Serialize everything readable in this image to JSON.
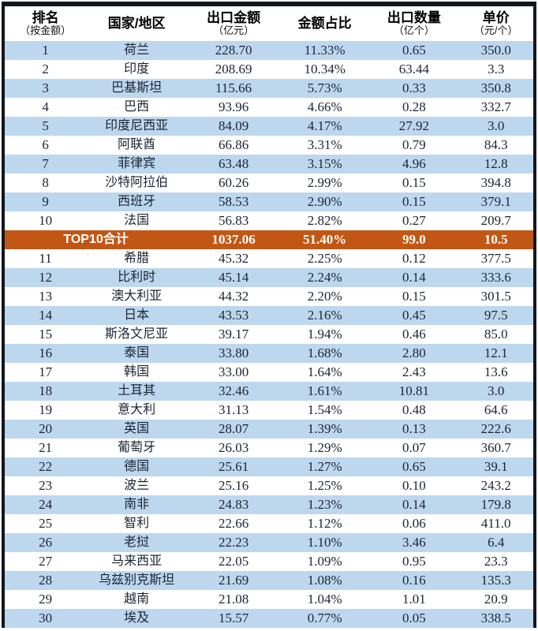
{
  "table": {
    "columns": [
      {
        "title": "排名",
        "sub": "（按金额）"
      },
      {
        "title": "国家/地区",
        "sub": ""
      },
      {
        "title": "出口金额",
        "sub": "（亿元）"
      },
      {
        "title": "金额占比",
        "sub": ""
      },
      {
        "title": "出口数量",
        "sub": "（亿个）"
      },
      {
        "title": "单价",
        "sub": "（元/个）"
      }
    ],
    "rows": [
      {
        "rank": "1",
        "country": "荷兰",
        "amount": "228.70",
        "share": "11.33%",
        "quantity": "0.65",
        "price": "350.0"
      },
      {
        "rank": "2",
        "country": "印度",
        "amount": "208.69",
        "share": "10.34%",
        "quantity": "63.44",
        "price": "3.3"
      },
      {
        "rank": "3",
        "country": "巴基斯坦",
        "amount": "115.66",
        "share": "5.73%",
        "quantity": "0.33",
        "price": "350.8"
      },
      {
        "rank": "4",
        "country": "巴西",
        "amount": "93.96",
        "share": "4.66%",
        "quantity": "0.28",
        "price": "332.7"
      },
      {
        "rank": "5",
        "country": "印度尼西亚",
        "amount": "84.09",
        "share": "4.17%",
        "quantity": "27.92",
        "price": "3.0"
      },
      {
        "rank": "6",
        "country": "阿联酋",
        "amount": "66.86",
        "share": "3.31%",
        "quantity": "0.79",
        "price": "84.3"
      },
      {
        "rank": "7",
        "country": "菲律宾",
        "amount": "63.48",
        "share": "3.15%",
        "quantity": "4.96",
        "price": "12.8"
      },
      {
        "rank": "8",
        "country": "沙特阿拉伯",
        "amount": "60.26",
        "share": "2.99%",
        "quantity": "0.15",
        "price": "394.8"
      },
      {
        "rank": "9",
        "country": "西班牙",
        "amount": "58.53",
        "share": "2.90%",
        "quantity": "0.15",
        "price": "379.1"
      },
      {
        "rank": "10",
        "country": "法国",
        "amount": "56.83",
        "share": "2.82%",
        "quantity": "0.27",
        "price": "209.7"
      },
      {
        "type": "summary",
        "label": "TOP10合计",
        "amount": "1037.06",
        "share": "51.40%",
        "quantity": "99.0",
        "price": "10.5"
      },
      {
        "rank": "11",
        "country": "希腊",
        "amount": "45.32",
        "share": "2.25%",
        "quantity": "0.12",
        "price": "377.5"
      },
      {
        "rank": "12",
        "country": "比利时",
        "amount": "45.14",
        "share": "2.24%",
        "quantity": "0.14",
        "price": "333.6"
      },
      {
        "rank": "13",
        "country": "澳大利亚",
        "amount": "44.32",
        "share": "2.20%",
        "quantity": "0.15",
        "price": "301.5"
      },
      {
        "rank": "14",
        "country": "日本",
        "amount": "43.53",
        "share": "2.16%",
        "quantity": "0.45",
        "price": "97.5"
      },
      {
        "rank": "15",
        "country": "斯洛文尼亚",
        "amount": "39.17",
        "share": "1.94%",
        "quantity": "0.46",
        "price": "85.0"
      },
      {
        "rank": "16",
        "country": "泰国",
        "amount": "33.80",
        "share": "1.68%",
        "quantity": "2.80",
        "price": "12.1"
      },
      {
        "rank": "17",
        "country": "韩国",
        "amount": "33.00",
        "share": "1.64%",
        "quantity": "2.43",
        "price": "13.6"
      },
      {
        "rank": "18",
        "country": "土耳其",
        "amount": "32.46",
        "share": "1.61%",
        "quantity": "10.81",
        "price": "3.0"
      },
      {
        "rank": "19",
        "country": "意大利",
        "amount": "31.13",
        "share": "1.54%",
        "quantity": "0.48",
        "price": "64.6"
      },
      {
        "rank": "20",
        "country": "英国",
        "amount": "28.07",
        "share": "1.39%",
        "quantity": "0.13",
        "price": "222.6"
      },
      {
        "rank": "21",
        "country": "葡萄牙",
        "amount": "26.03",
        "share": "1.29%",
        "quantity": "0.07",
        "price": "360.7"
      },
      {
        "rank": "22",
        "country": "德国",
        "amount": "25.61",
        "share": "1.27%",
        "quantity": "0.65",
        "price": "39.1"
      },
      {
        "rank": "23",
        "country": "波兰",
        "amount": "25.16",
        "share": "1.25%",
        "quantity": "0.10",
        "price": "243.2"
      },
      {
        "rank": "24",
        "country": "南非",
        "amount": "24.83",
        "share": "1.23%",
        "quantity": "0.14",
        "price": "179.8"
      },
      {
        "rank": "25",
        "country": "智利",
        "amount": "22.66",
        "share": "1.12%",
        "quantity": "0.06",
        "price": "411.0"
      },
      {
        "rank": "26",
        "country": "老挝",
        "amount": "22.23",
        "share": "1.10%",
        "quantity": "3.46",
        "price": "6.4"
      },
      {
        "rank": "27",
        "country": "马来西亚",
        "amount": "22.05",
        "share": "1.09%",
        "quantity": "0.95",
        "price": "23.3"
      },
      {
        "rank": "28",
        "country": "乌兹别克斯坦",
        "amount": "21.69",
        "share": "1.08%",
        "quantity": "0.16",
        "price": "135.3"
      },
      {
        "rank": "29",
        "country": "越南",
        "amount": "21.08",
        "share": "1.04%",
        "quantity": "1.01",
        "price": "20.9"
      },
      {
        "rank": "30",
        "country": "埃及",
        "amount": "15.57",
        "share": "0.77%",
        "quantity": "0.05",
        "price": "338.5"
      }
    ],
    "colors": {
      "row_blue": "#BDD7EE",
      "row_white": "#FFFFFF",
      "summary_bg": "#C25715",
      "summary_text": "#FFFFFF",
      "border_dark": "#14161F",
      "text": "#1B2435"
    }
  }
}
